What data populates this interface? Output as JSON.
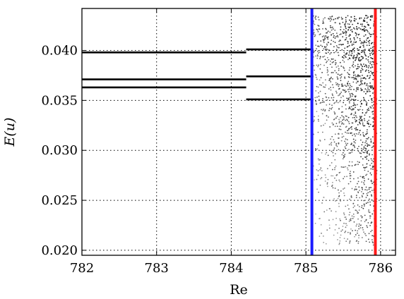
{
  "chart_data": {
    "type": "scatter",
    "title": "",
    "xlabel": "Re",
    "ylabel": "E(u)",
    "xlim": [
      782.0,
      786.2
    ],
    "ylim": [
      0.0195,
      0.0442
    ],
    "xticks": [
      782,
      783,
      784,
      785,
      786
    ],
    "xtick_labels": [
      "782",
      "783",
      "784",
      "785",
      "786"
    ],
    "yticks": [
      0.02,
      0.025,
      0.03,
      0.035,
      0.04
    ],
    "ytick_labels": [
      "0.020",
      "0.025",
      "0.030",
      "0.035",
      "0.040"
    ],
    "grid": true,
    "grid_style": "dotted",
    "series": [
      {
        "x": [
          782.0,
          784.2
        ],
        "y": [
          0.0398,
          0.0398
        ]
      },
      {
        "x": [
          782.0,
          784.2
        ],
        "y": [
          0.0371,
          0.0371
        ]
      },
      {
        "x": [
          782.0,
          784.2
        ],
        "y": [
          0.0363,
          0.0363
        ]
      },
      {
        "x": [
          784.2,
          785.1
        ],
        "y": [
          0.0401,
          0.0401
        ]
      },
      {
        "x": [
          784.2,
          785.1
        ],
        "y": [
          0.0374,
          0.0374
        ]
      },
      {
        "x": [
          784.2,
          785.1
        ],
        "y": [
          0.0351,
          0.0351
        ]
      }
    ],
    "chaotic_region_x": [
      785.1,
      785.95
    ],
    "chaotic_region_y": [
      0.0205,
      0.0435
    ],
    "vertical_lines": [
      {
        "x": 785.08,
        "color": "#1a1aff"
      },
      {
        "x": 785.93,
        "color": "#ff1a1a"
      }
    ]
  }
}
